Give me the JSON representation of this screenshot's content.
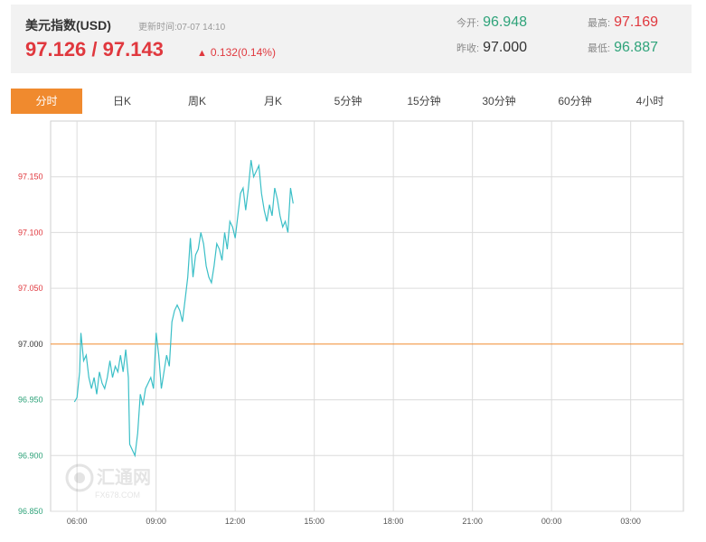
{
  "header": {
    "title": "美元指数(USD)",
    "update_label": "更新时间:",
    "update_time": "07-07 14:10",
    "price": "97.126 / 97.143",
    "change_arrow": "up-arrow-icon",
    "change": "0.132(0.14%)"
  },
  "stats": {
    "open_label": "今开:",
    "open_value": "96.948",
    "prev_close_label": "昨收:",
    "prev_close_value": "97.000",
    "high_label": "最高:",
    "high_value": "97.169",
    "low_label": "最低:",
    "low_value": "96.887"
  },
  "tabs": [
    "分时",
    "日K",
    "周K",
    "月K",
    "5分钟",
    "15分钟",
    "30分钟",
    "60分钟",
    "4小时"
  ],
  "active_tab": "分时",
  "watermark": {
    "cn": "汇通网",
    "en": "FX678.COM"
  },
  "colors": {
    "up": "#e0383e",
    "down": "#2fa37a",
    "line": "#3bbfc7",
    "ref": "#f08a2e",
    "tab_active": "#f08a2e"
  },
  "chart_data": {
    "type": "line",
    "title": "",
    "xlabel": "",
    "ylabel": "",
    "x_ticks": [
      "06:00",
      "09:00",
      "12:00",
      "15:00",
      "18:00",
      "21:00",
      "00:00",
      "03:00"
    ],
    "y_ticks": [
      96.85,
      96.9,
      96.95,
      97.0,
      97.05,
      97.1,
      97.15
    ],
    "y_tick_labels": [
      "96.850",
      "96.900",
      "96.950",
      "97.000",
      "97.050",
      "97.100",
      "97.150"
    ],
    "ylim": [
      96.85,
      97.2
    ],
    "x_range_hours": [
      5,
      29
    ],
    "reference_line": 97.0,
    "grid": true,
    "series": [
      {
        "x": [
          5.9,
          6.0,
          6.1,
          6.15,
          6.25,
          6.35,
          6.45,
          6.55,
          6.65,
          6.75,
          6.85,
          6.95,
          7.05,
          7.15,
          7.25,
          7.35,
          7.45,
          7.55,
          7.65,
          7.75,
          7.85,
          7.95,
          8.0,
          8.1,
          8.2,
          8.3,
          8.4,
          8.5,
          8.6,
          8.7,
          8.8,
          8.9,
          9.0,
          9.1,
          9.2,
          9.3,
          9.4,
          9.5,
          9.6,
          9.7,
          9.8,
          9.9,
          10.0,
          10.1,
          10.2,
          10.3,
          10.4,
          10.5,
          10.6,
          10.7,
          10.8,
          10.9,
          11.0,
          11.1,
          11.2,
          11.3,
          11.4,
          11.5,
          11.6,
          11.7,
          11.8,
          11.9,
          12.0,
          12.1,
          12.2,
          12.3,
          12.4,
          12.5,
          12.6,
          12.7,
          12.8,
          12.9,
          13.0,
          13.1,
          13.2,
          13.3,
          13.4,
          13.5,
          13.6,
          13.7,
          13.8,
          13.9,
          14.0,
          14.1,
          14.2
        ],
        "y": [
          96.948,
          96.952,
          96.975,
          97.01,
          96.985,
          96.99,
          96.97,
          96.96,
          96.97,
          96.955,
          96.975,
          96.965,
          96.96,
          96.97,
          96.985,
          96.97,
          96.98,
          96.975,
          96.99,
          96.975,
          96.995,
          96.97,
          96.91,
          96.905,
          96.9,
          96.92,
          96.955,
          96.945,
          96.96,
          96.965,
          96.97,
          96.96,
          97.01,
          96.99,
          96.96,
          96.975,
          96.99,
          96.98,
          97.02,
          97.03,
          97.035,
          97.03,
          97.02,
          97.04,
          97.06,
          97.095,
          97.06,
          97.08,
          97.085,
          97.1,
          97.09,
          97.07,
          97.06,
          97.055,
          97.07,
          97.09,
          97.085,
          97.075,
          97.1,
          97.085,
          97.11,
          97.105,
          97.095,
          97.115,
          97.135,
          97.14,
          97.12,
          97.14,
          97.165,
          97.15,
          97.155,
          97.16,
          97.135,
          97.12,
          97.11,
          97.125,
          97.115,
          97.14,
          97.13,
          97.115,
          97.105,
          97.11,
          97.1,
          97.14,
          97.126
        ]
      }
    ]
  }
}
